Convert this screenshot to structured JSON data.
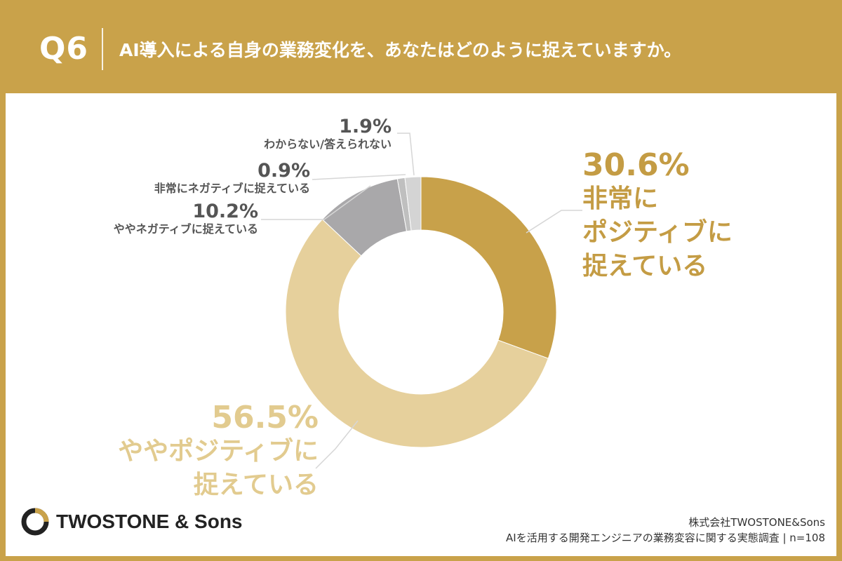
{
  "header": {
    "question_number": "Q6",
    "question_text": "AI導入による自身の業務変化を、あなたはどのように捉えていますか。"
  },
  "chart_data": {
    "type": "pie",
    "donut": true,
    "slices": [
      {
        "label": "非常にポジティブに捉えている",
        "value": 30.6,
        "display": "30.6%",
        "color": "#c8a14a"
      },
      {
        "label": "ややポジティブに捉えている",
        "value": 56.5,
        "display": "56.5%",
        "color": "#e6d09c"
      },
      {
        "label": "ややネガティブに捉えている",
        "value": 10.2,
        "display": "10.2%",
        "color": "#a9a8aa"
      },
      {
        "label": "非常にネガティブに捉えている",
        "value": 0.9,
        "display": "0.9%",
        "color": "#bfbfbf"
      },
      {
        "label": "わからない/答えられない",
        "value": 1.9,
        "display": "1.9%",
        "color": "#d4d4d4"
      }
    ]
  },
  "labels": {
    "very_positive": {
      "pct": "30.6%",
      "line1": "非常に",
      "line2": "ポジティブに",
      "line3": "捉えている"
    },
    "somewhat_positive": {
      "pct": "56.5%",
      "line1": "ややポジティブに",
      "line2": "捉えている"
    },
    "somewhat_negative": {
      "pct": "10.2%",
      "text": "ややネガティブに捉えている"
    },
    "very_negative": {
      "pct": "0.9%",
      "text": "非常にネガティブに捉えている"
    },
    "unknown": {
      "pct": "1.9%",
      "text": "わからない/答えられない"
    }
  },
  "footer": {
    "logo_text": "TWOSTONE & Sons",
    "company": "株式会社TWOSTONE&Sons",
    "source": "AIを活用する開発エンジニアの業務変容に関する実態調査 | n=108"
  },
  "colors": {
    "brand_gold": "#c9a24a",
    "dark_slice": "#c8a14a",
    "light_slice": "#e6d09c",
    "gray_slice": "#a9a8aa"
  }
}
